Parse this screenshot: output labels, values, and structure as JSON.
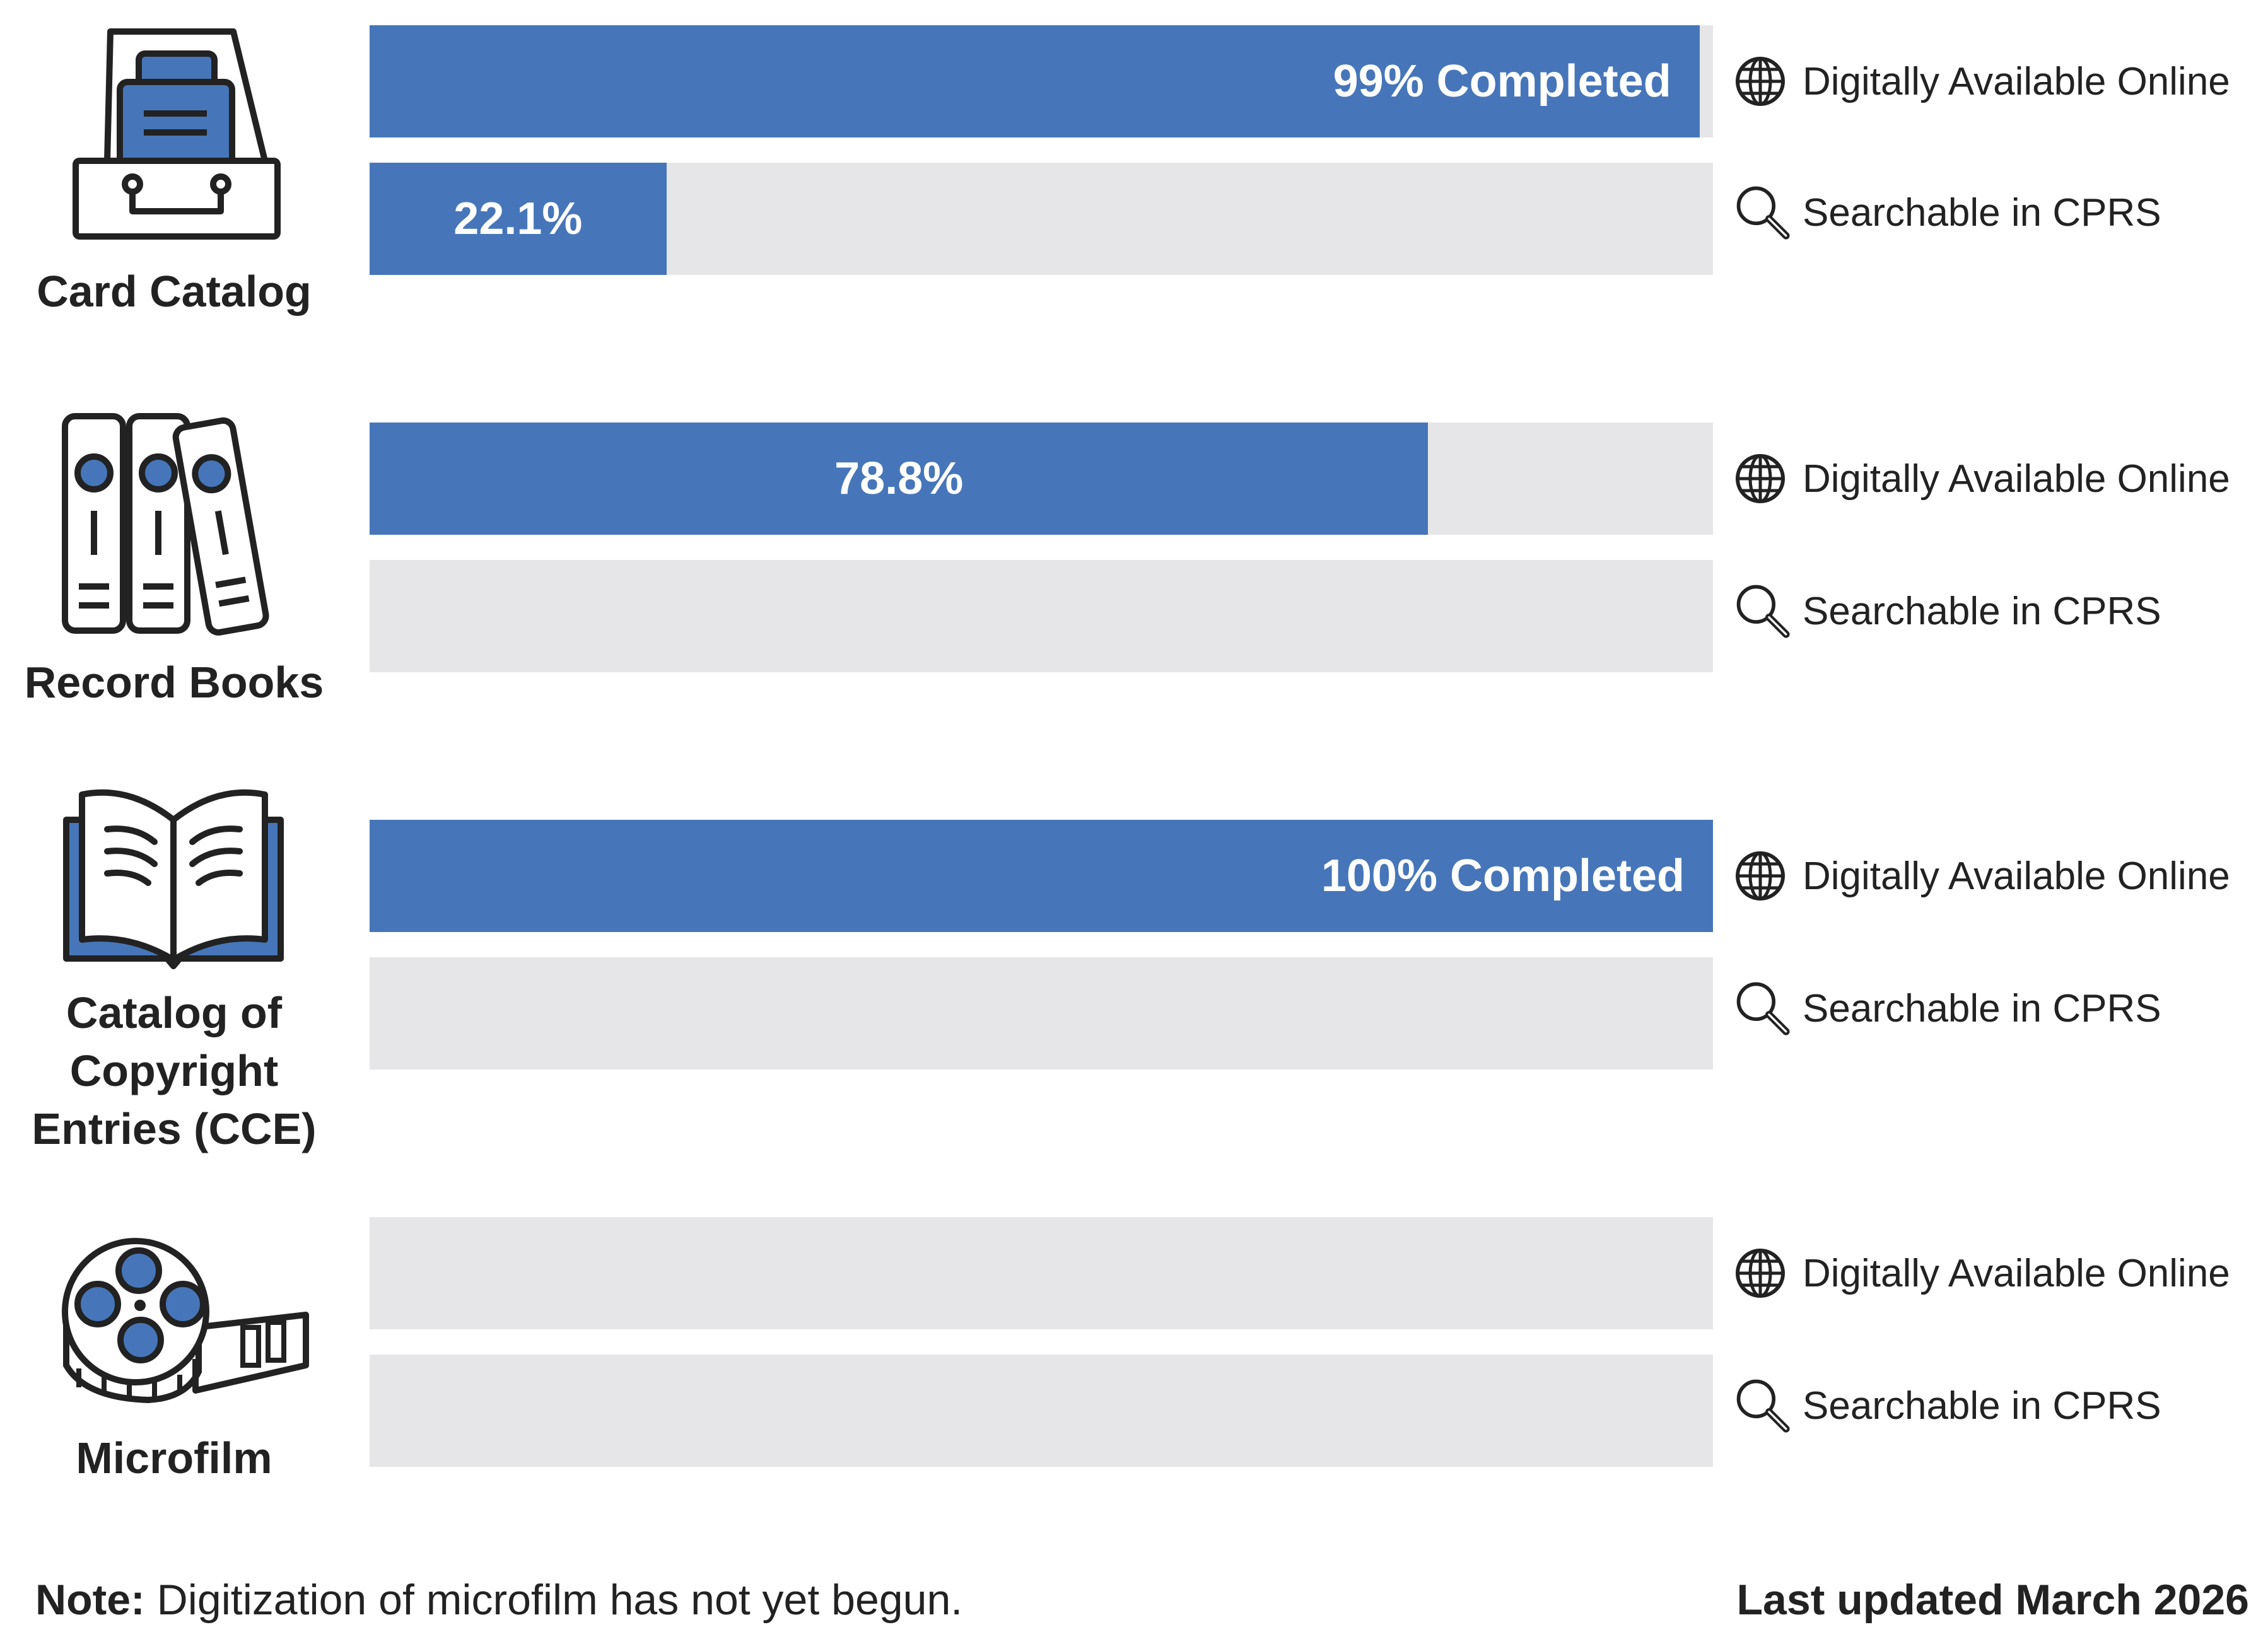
{
  "chart_data": {
    "type": "bar",
    "orientation": "horizontal",
    "xlim": [
      0,
      100
    ],
    "unit": "%",
    "categories": [
      "Card Catalog",
      "Record Books",
      "Catalog of Copyright Entries (CCE)",
      "Microfilm"
    ],
    "series": [
      {
        "name": "Digitally Available Online",
        "values": [
          99,
          78.8,
          100,
          0
        ]
      },
      {
        "name": "Searchable in CPRS",
        "values": [
          22.1,
          0,
          0,
          0
        ]
      }
    ],
    "bar_labels": {
      "Digitally Available Online": [
        "99% Completed",
        "78.8%",
        "100% Completed",
        ""
      ],
      "Searchable in CPRS": [
        "22.1%",
        "",
        "",
        ""
      ]
    },
    "colors": {
      "fill": "#4676b9",
      "track": "#e6e6e8",
      "icon_outline": "#222222"
    }
  },
  "groups": [
    {
      "label_lines": [
        "Card Catalog"
      ],
      "icon": "card-catalog-drawer-icon",
      "rows": [
        {
          "value": 99,
          "label": "99% Completed",
          "side_icon": "globe-icon",
          "side_text": "Digitally Available Online"
        },
        {
          "value": 22.1,
          "label": "22.1%",
          "side_icon": "magnifier-icon",
          "side_text": "Searchable in CPRS"
        }
      ]
    },
    {
      "label_lines": [
        "Record Books"
      ],
      "icon": "record-books-binders-icon",
      "rows": [
        {
          "value": 78.8,
          "label": "78.8%",
          "side_icon": "globe-icon",
          "side_text": "Digitally Available Online"
        },
        {
          "value": 0,
          "label": "",
          "side_icon": "magnifier-icon",
          "side_text": "Searchable in CPRS"
        }
      ]
    },
    {
      "label_lines": [
        "Catalog of",
        "Copyright",
        "Entries (CCE)"
      ],
      "icon": "open-book-icon",
      "rows": [
        {
          "value": 100,
          "label": "100% Completed",
          "side_icon": "globe-icon",
          "side_text": "Digitally Available Online"
        },
        {
          "value": 0,
          "label": "",
          "side_icon": "magnifier-icon",
          "side_text": "Searchable in CPRS"
        }
      ]
    },
    {
      "label_lines": [
        "Microfilm"
      ],
      "icon": "film-reel-icon",
      "rows": [
        {
          "value": 0,
          "label": "",
          "side_icon": "globe-icon",
          "side_text": "Digitally Available Online"
        },
        {
          "value": 0,
          "label": "",
          "side_icon": "magnifier-icon",
          "side_text": "Searchable in CPRS"
        }
      ]
    }
  ],
  "footer": {
    "note_label": "Note:",
    "note_text": " Digitization of microfilm has not yet begun.",
    "updated": "Last updated March 2026"
  }
}
